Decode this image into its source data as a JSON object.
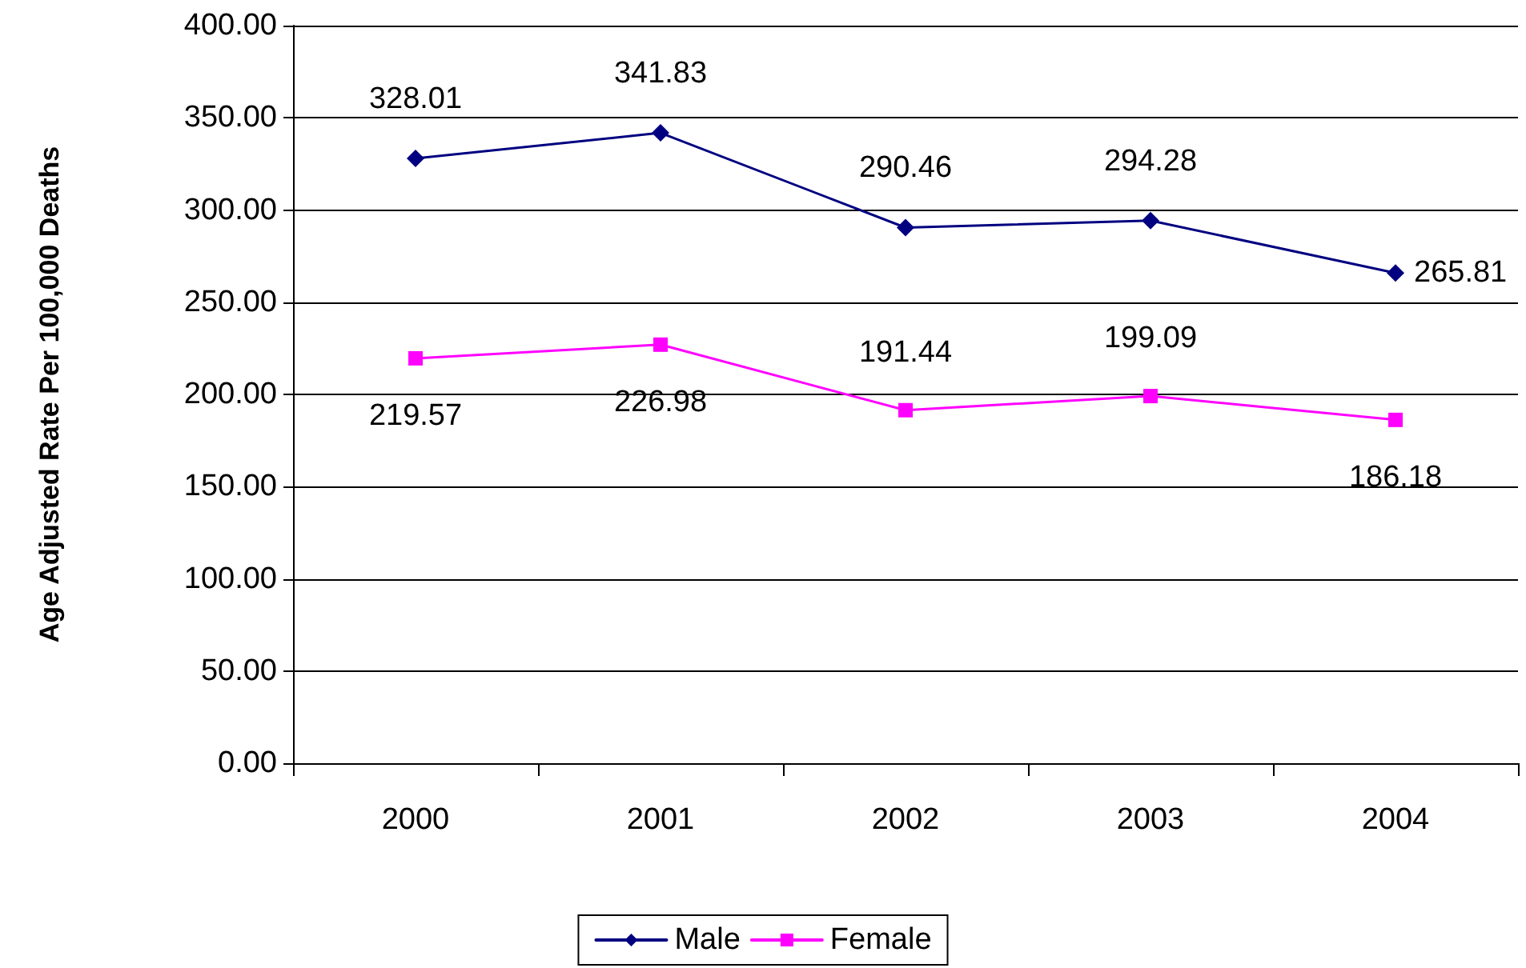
{
  "chart_data": {
    "type": "line",
    "ylabel": "Age Adjusted Rate Per 100,000 Deaths",
    "categories": [
      "2000",
      "2001",
      "2002",
      "2003",
      "2004"
    ],
    "series": [
      {
        "name": "Male",
        "color": "#000080",
        "marker": "diamond",
        "values": [
          328.01,
          341.83,
          290.46,
          294.28,
          265.81
        ]
      },
      {
        "name": "Female",
        "color": "#ff00ff",
        "marker": "square",
        "values": [
          219.57,
          226.98,
          191.44,
          199.09,
          186.18
        ]
      }
    ],
    "ylim": [
      0,
      400
    ],
    "yticks": [
      {
        "value": 0,
        "label": "0.00"
      },
      {
        "value": 50,
        "label": "50.00"
      },
      {
        "value": 100,
        "label": "100.00"
      },
      {
        "value": 150,
        "label": "150.00"
      },
      {
        "value": 200,
        "label": "200.00"
      },
      {
        "value": 250,
        "label": "250.00"
      },
      {
        "value": 300,
        "label": "300.00"
      },
      {
        "value": 350,
        "label": "350.00"
      },
      {
        "value": 400,
        "label": "400.00"
      }
    ],
    "grid": "y",
    "legend": "bottom",
    "line_style": "solid",
    "data_labels": true
  }
}
